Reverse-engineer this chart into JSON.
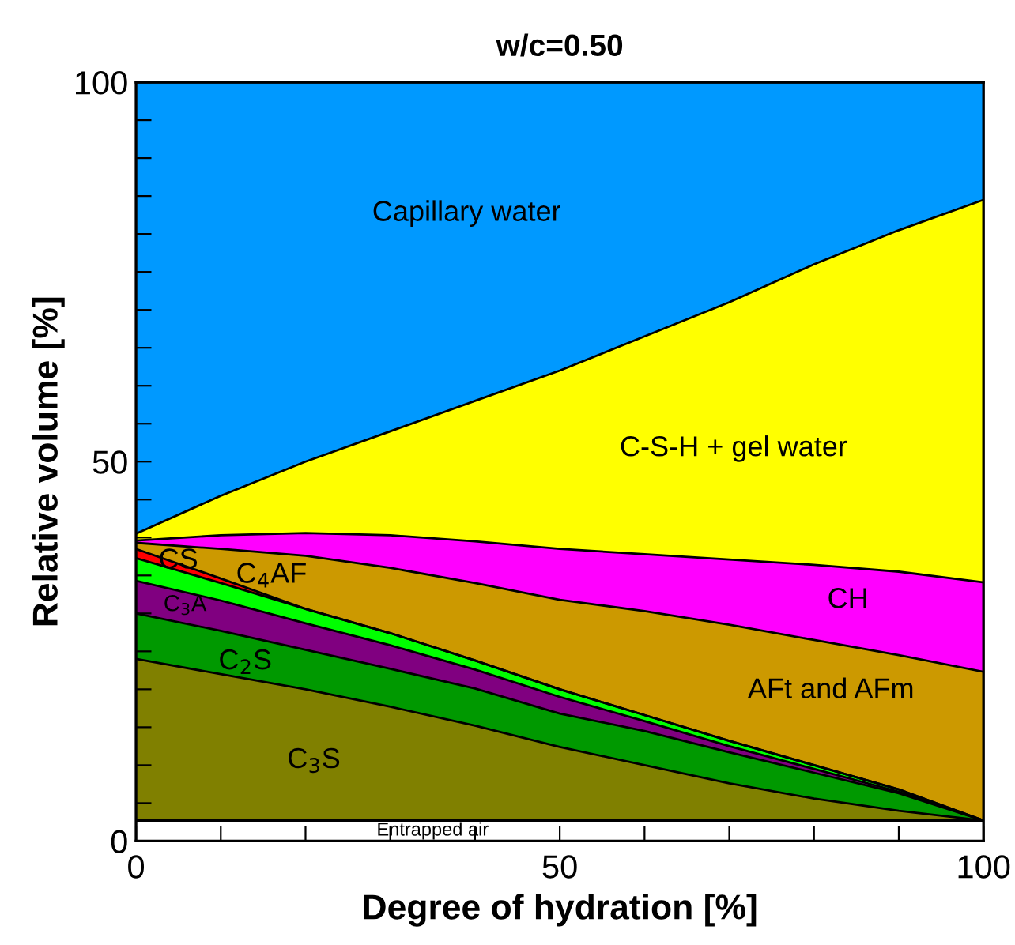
{
  "chart_data": {
    "type": "area",
    "stacked": true,
    "title": "w/c=0.50",
    "xlabel": "Degree of hydration [%]",
    "ylabel": "Relative volume [%]",
    "x": [
      0,
      10,
      20,
      30,
      40,
      50,
      60,
      70,
      80,
      90,
      100
    ],
    "xlim": [
      0,
      100
    ],
    "ylim": [
      0,
      100
    ],
    "xticks": [
      0,
      {
        "value": 10,
        "label": null
      },
      {
        "value": 20,
        "label": null
      },
      {
        "value": 30,
        "label": null
      },
      {
        "value": 40,
        "label": null
      },
      50,
      {
        "value": 60,
        "label": null
      },
      {
        "value": 70,
        "label": null
      },
      {
        "value": 80,
        "label": null
      },
      {
        "value": 90,
        "label": null
      },
      100
    ],
    "yticks": [
      0,
      {
        "value": 5,
        "label": null
      },
      {
        "value": 10,
        "label": null
      },
      {
        "value": 15,
        "label": null
      },
      {
        "value": 20,
        "label": null
      },
      {
        "value": 25,
        "label": null
      },
      {
        "value": 30,
        "label": null
      },
      {
        "value": 35,
        "label": null
      },
      {
        "value": 40,
        "label": null
      },
      {
        "value": 45,
        "label": null
      },
      50,
      {
        "value": 55,
        "label": null
      },
      {
        "value": 60,
        "label": null
      },
      {
        "value": 65,
        "label": null
      },
      {
        "value": 70,
        "label": null
      },
      {
        "value": 75,
        "label": null
      },
      {
        "value": 80,
        "label": null
      },
      {
        "value": 85,
        "label": null
      },
      {
        "value": 90,
        "label": null
      },
      {
        "value": 95,
        "label": null
      },
      100
    ],
    "grid": false,
    "legend": false,
    "series": [
      {
        "name": "Entrapped air",
        "color": "#ffffff",
        "values": [
          2.7,
          2.7,
          2.7,
          2.7,
          2.7,
          2.7,
          2.7,
          2.7,
          2.7,
          2.7,
          2.7
        ]
      },
      {
        "name": "C$_{3}$S",
        "color": "#808000",
        "values": [
          21.3,
          19.3,
          17.3,
          15.0,
          12.5,
          9.7,
          7.3,
          4.9,
          2.9,
          1.3,
          0
        ]
      },
      {
        "name": "C$_{2}$S",
        "color": "#009900",
        "values": [
          6.0,
          5.7,
          5.2,
          5.0,
          4.9,
          4.4,
          4.5,
          4.1,
          3.4,
          2.3,
          0
        ]
      },
      {
        "name": "C$_{3}$A",
        "color": "#800080",
        "values": [
          4.3,
          4.0,
          3.5,
          3.1,
          2.5,
          2.2,
          1.3,
          0.8,
          0.5,
          0.2,
          0
        ]
      },
      {
        "name": "C$_{4}$AF",
        "color": "#00ff00",
        "values": [
          3.0,
          2.3,
          1.9,
          1.6,
          1.2,
          1.0,
          0.8,
          0.7,
          0.5,
          0.3,
          0
        ]
      },
      {
        "name": "CS",
        "color": "#ff0000",
        "values": [
          1.2,
          0.6,
          0,
          0,
          0,
          0,
          0,
          0,
          0,
          0,
          0
        ]
      },
      {
        "name": "AFt and AFm",
        "color": "#cc9900",
        "values": [
          0.8,
          3.9,
          7.0,
          8.6,
          10.2,
          11.8,
          13.7,
          15.3,
          16.5,
          17.7,
          19.6
        ]
      },
      {
        "name": "CH",
        "color": "#ff00ff",
        "values": [
          0.3,
          1.8,
          3.0,
          4.3,
          5.5,
          6.7,
          7.5,
          8.6,
          9.9,
          11.0,
          11.8
        ]
      },
      {
        "name": "C-S-H + gel water",
        "color": "#ffff00",
        "values": [
          0.9,
          5.2,
          9.4,
          13.7,
          18.5,
          23.5,
          28.7,
          33.9,
          39.6,
          45.0,
          50.4
        ]
      },
      {
        "name": "Capillary water",
        "color": "#0099ff",
        "values": [
          59.5,
          54.5,
          50,
          46,
          42,
          38,
          33.5,
          29,
          24,
          19.5,
          15.5
        ]
      }
    ]
  }
}
